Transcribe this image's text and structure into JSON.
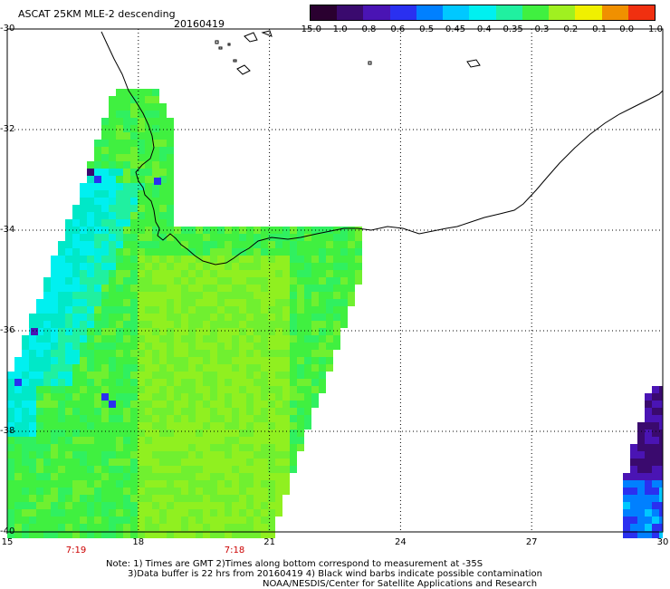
{
  "title": "ASCAT 25KM MLE-2 descending",
  "date": "20160419",
  "colorbar": {
    "labels": [
      "-15.0",
      "-1.0",
      "-0.8",
      "-0.6",
      "-0.5",
      "-0.45",
      "-0.4",
      "-0.35",
      "-0.3",
      "-0.2",
      "-0.1",
      "0.0",
      "1.0"
    ],
    "colors": [
      "#2a0030",
      "#3a0a6e",
      "#4a14b4",
      "#2a30f0",
      "#0080ff",
      "#00c8ff",
      "#00f0f0",
      "#20f0a0",
      "#40f040",
      "#a0f020",
      "#f0f000",
      "#f09000",
      "#f03010"
    ]
  },
  "axes": {
    "lat_labels": [
      "-30",
      "-32",
      "-34",
      "-36",
      "-38",
      "-40"
    ],
    "lon_labels": [
      "15",
      "18",
      "21",
      "24",
      "27",
      "30"
    ]
  },
  "pass_times": [
    "7:19",
    "7:18"
  ],
  "notes": [
    "Note: 1) Times are GMT 2)Times along bottom correspond to measurement at -35S",
    "3)Data buffer is 22 hrs from 20160419 4) Black wind barbs indicate possible contamination",
    "NOAA/NESDIS/Center for Satellite Applications and Research"
  ]
}
